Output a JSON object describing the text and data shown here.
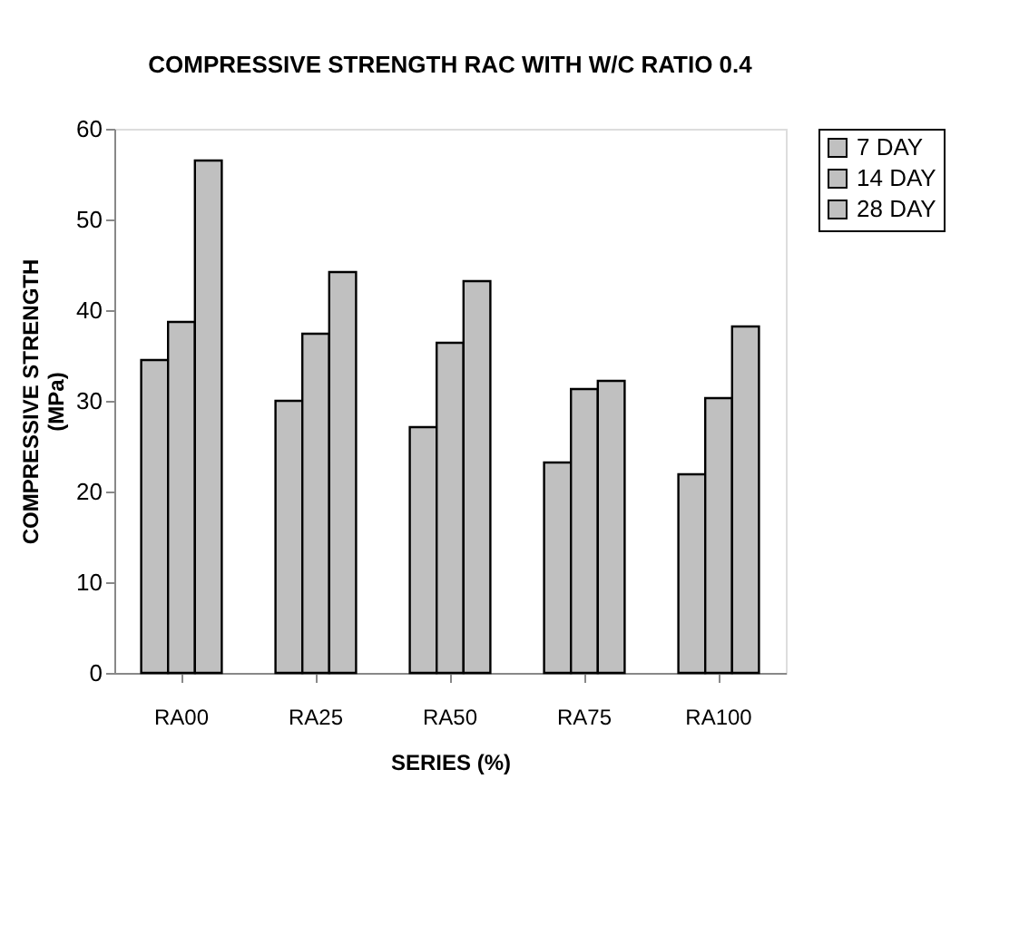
{
  "chart_data": {
    "type": "bar",
    "title": "COMPRESSIVE STRENGTH RAC WITH W/C RATIO 0.4",
    "xlabel": "SERIES (%)",
    "ylabel": "COMPRESSIVE STRENGTH\n(MPa)",
    "categories": [
      "RA00",
      "RA25",
      "RA50",
      "RA75",
      "RA100"
    ],
    "series": [
      {
        "name": "7 DAY",
        "color": "#c0c0c0",
        "values": [
          34.5,
          30.0,
          27.1,
          23.2,
          21.9
        ]
      },
      {
        "name": "14 DAY",
        "color": "#c0c0c0",
        "values": [
          38.7,
          37.4,
          36.4,
          31.3,
          30.3
        ]
      },
      {
        "name": "28 DAY",
        "color": "#c0c0c0",
        "values": [
          56.5,
          44.2,
          43.2,
          32.2,
          38.2
        ]
      }
    ],
    "ylim": [
      0,
      60
    ],
    "yticks": [
      0,
      10,
      20,
      30,
      40,
      50,
      60
    ],
    "grid": false,
    "legend": "right"
  }
}
